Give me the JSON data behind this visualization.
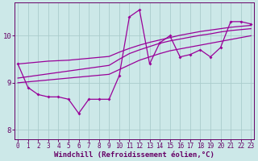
{
  "xlabel": "Windchill (Refroidissement éolien,°C)",
  "ylabel": "",
  "bg_color": "#cce8e8",
  "line_color": "#990099",
  "grid_color": "#aacccc",
  "axis_color": "#660066",
  "text_color": "#660066",
  "xlim": [
    -0.3,
    23.3
  ],
  "ylim": [
    7.8,
    10.7
  ],
  "yticks": [
    8,
    9,
    10
  ],
  "xticks": [
    0,
    1,
    2,
    3,
    4,
    5,
    6,
    7,
    8,
    9,
    10,
    11,
    12,
    13,
    14,
    15,
    16,
    17,
    18,
    19,
    20,
    21,
    22,
    23
  ],
  "zigzag": [
    9.4,
    8.9,
    8.75,
    8.7,
    8.7,
    8.65,
    8.35,
    8.65,
    8.65,
    8.65,
    9.15,
    10.4,
    10.55,
    9.4,
    9.85,
    10.0,
    9.55,
    9.6,
    9.7,
    9.55,
    9.75,
    10.3,
    10.3,
    10.25
  ],
  "trend_low": [
    9.0,
    9.02,
    9.04,
    9.06,
    9.08,
    9.1,
    9.12,
    9.14,
    9.16,
    9.18,
    9.28,
    9.38,
    9.48,
    9.55,
    9.62,
    9.68,
    9.72,
    9.76,
    9.8,
    9.84,
    9.88,
    9.92,
    9.96,
    10.0
  ],
  "trend_mid": [
    9.1,
    9.13,
    9.16,
    9.19,
    9.22,
    9.25,
    9.28,
    9.31,
    9.34,
    9.37,
    9.5,
    9.62,
    9.7,
    9.77,
    9.84,
    9.89,
    9.93,
    9.97,
    10.01,
    10.04,
    10.08,
    10.11,
    10.13,
    10.15
  ],
  "trend_high": [
    9.4,
    9.42,
    9.44,
    9.46,
    9.47,
    9.48,
    9.5,
    9.52,
    9.54,
    9.56,
    9.65,
    9.73,
    9.8,
    9.86,
    9.91,
    9.96,
    10.01,
    10.05,
    10.09,
    10.12,
    10.15,
    10.18,
    10.2,
    10.22
  ],
  "figsize": [
    3.2,
    2.0
  ],
  "dpi": 100
}
